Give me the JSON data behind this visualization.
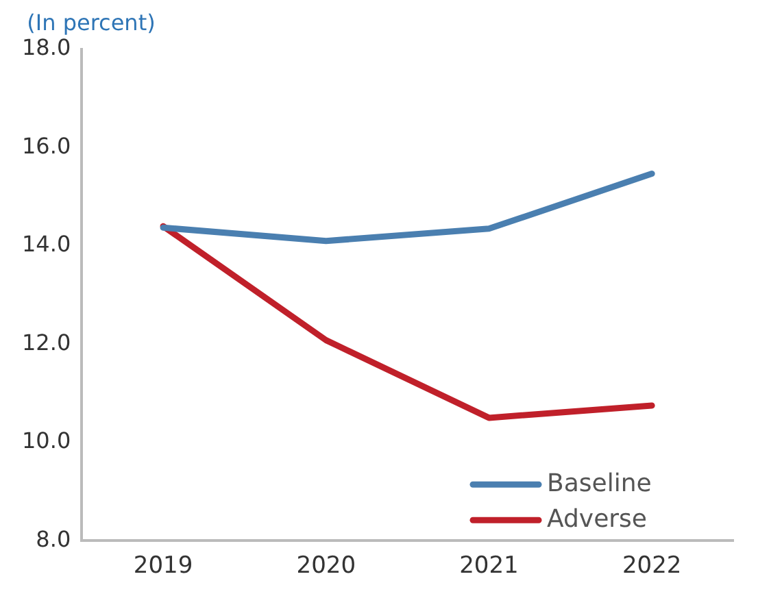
{
  "chart_data": {
    "type": "line",
    "ylabel": "(In percent)",
    "categories": [
      "2019",
      "2020",
      "2021",
      "2022"
    ],
    "series": [
      {
        "name": "Baseline",
        "color": "#4a7fb0",
        "values": [
          14.37,
          14.1,
          14.35,
          15.47
        ]
      },
      {
        "name": "Adverse",
        "color": "#c0202a",
        "values": [
          14.4,
          12.08,
          10.5,
          10.75
        ]
      }
    ],
    "ylim": [
      8,
      18
    ],
    "yticks": [
      {
        "value": 8,
        "label": "8.0"
      },
      {
        "value": 10,
        "label": "10.0"
      },
      {
        "value": 12,
        "label": "12.0"
      },
      {
        "value": 14,
        "label": "14.0"
      },
      {
        "value": 16,
        "label": "16.0"
      },
      {
        "value": 18,
        "label": "18.0"
      }
    ],
    "grid": false,
    "legend": "bottom right",
    "marker": "none",
    "line_style": "solid"
  }
}
